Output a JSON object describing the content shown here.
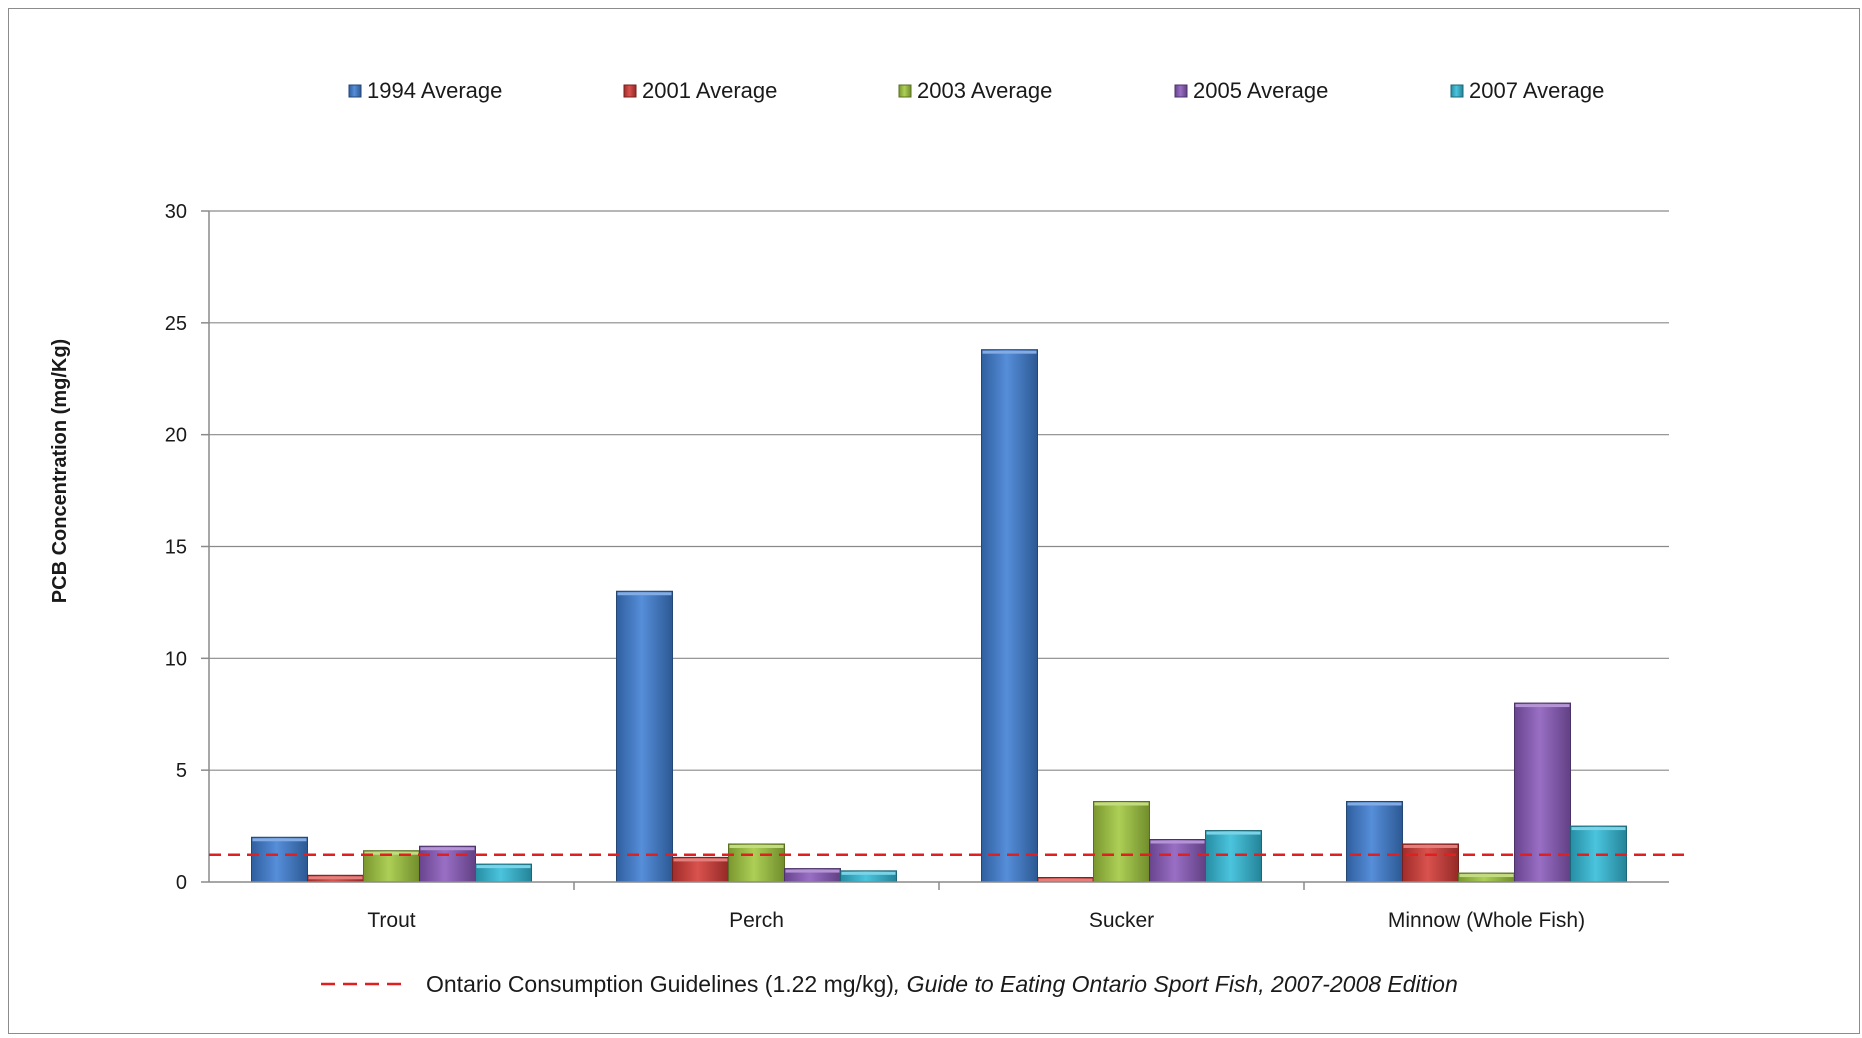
{
  "chart_data": {
    "type": "bar",
    "categories": [
      "Trout",
      "Perch",
      "Sucker",
      "Minnow (Whole Fish)"
    ],
    "series": [
      {
        "name": "1994 Average",
        "color": "#3f7fd4",
        "values": [
          2.0,
          13.0,
          23.8,
          3.6
        ]
      },
      {
        "name": "2001 Average",
        "color": "#d43a36",
        "values": [
          0.3,
          1.1,
          0.2,
          1.7
        ]
      },
      {
        "name": "2003 Average",
        "color": "#a2c93f",
        "values": [
          1.4,
          1.7,
          3.6,
          0.4
        ]
      },
      {
        "name": "2005 Average",
        "color": "#8b5bbd",
        "values": [
          1.6,
          0.6,
          1.9,
          8.0
        ]
      },
      {
        "name": "2007 Average",
        "color": "#33bcd9",
        "values": [
          0.8,
          0.5,
          2.3,
          2.5
        ]
      }
    ],
    "ylabel": "PCB Concentration (mg/Kg)",
    "xlabel": "",
    "ylim": [
      0,
      30
    ],
    "yticks": [
      0,
      5,
      10,
      15,
      20,
      25,
      30
    ],
    "grid": true,
    "legend_position": "top",
    "reference_line": {
      "value": 1.22,
      "color": "#e02020",
      "style": "dashed",
      "label_plain": "Ontario Consumption Guidelines (1.22 mg/kg)",
      "label_italic": ", Guide to Eating Ontario Sport Fish, 2007-2008 Edition"
    }
  }
}
